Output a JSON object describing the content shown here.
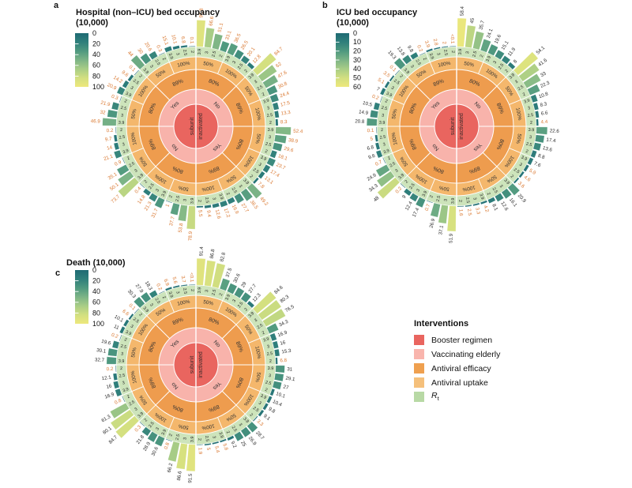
{
  "figure_title": "",
  "colors": {
    "booster_center": "#e9655f",
    "elderly_ring": "#f8b3ab",
    "efficacy_ring": "#ee9c4e",
    "uptake_ring": "#f4b76c",
    "rt_ring": "#cde4bb",
    "orange_label": "#d9772f",
    "black_label": "#2b2b2b",
    "colormap_stops": [
      "#1e6a73",
      "#2f7f7b",
      "#4f997f",
      "#7cb486",
      "#a8cd86",
      "#d2df80",
      "#eee87c"
    ],
    "legend_swatches": [
      "#e9655f",
      "#f9b5ad",
      "#efa04f",
      "#f5c07b",
      "#b8d9a5"
    ]
  },
  "chart_data": {
    "type": "radial-bar",
    "rings": {
      "booster_regimen": [
        "subunit",
        "inactivated"
      ],
      "vaccinating_elderly": [
        "No",
        "Yes",
        "No",
        "Yes"
      ],
      "antiviral_efficacy": [
        "80%",
        "89%",
        "80%",
        "89%",
        "80%",
        "89%",
        "80%",
        "89%"
      ],
      "antiviral_uptake": [
        "50%",
        "100%",
        "50%",
        "100%",
        "50%",
        "100%",
        "50%",
        "100%",
        "50%",
        "100%",
        "50%",
        "100%",
        "50%",
        "100%",
        "50%",
        "100%"
      ],
      "rt_per_group": [
        "3.9",
        "3",
        "2.5",
        "2"
      ]
    },
    "panels": [
      {
        "letter": "a",
        "title": "Hospital (non–ICU) bed occupancy",
        "subtitle": "(10,000)",
        "scale_max": 100,
        "colorbar_ticks": [
          "0",
          "20",
          "40",
          "60",
          "80",
          "100"
        ],
        "orange_below": 999,
        "groups": [
          [
            "90.8",
            "66.6",
            "51.1",
            "33.1"
          ],
          [
            "36.5",
            "26.5",
            "20.1",
            "12.8"
          ],
          [
            "84.7",
            "62",
            "47.6",
            "30.8"
          ],
          [
            "24.4",
            "17.5",
            "13.3",
            "8.3"
          ],
          [
            "52.4",
            "38.9",
            "29.6",
            "18.1"
          ],
          [
            "23.7",
            "17.4",
            "13.1",
            "7.8"
          ],
          [
            "49.2",
            "36.5",
            "27.7",
            "16.9"
          ],
          [
            "17.2",
            "12.6",
            "9.4",
            "5.5"
          ],
          [
            "78.9",
            "53.8",
            "37.7",
            "1"
          ],
          [
            "31.7",
            "21.3",
            "14.8",
            "0.4"
          ],
          [
            "73.7",
            "50.1",
            "35.1",
            "0.9"
          ],
          [
            "21.1",
            "14",
            "9.7",
            "0.2"
          ],
          [
            "46.9",
            "32",
            "21.9",
            "0.3"
          ],
          [
            "20.9",
            "14.2",
            "9.6",
            "0.1"
          ],
          [
            "44",
            "30",
            "20.6",
            "0.3"
          ],
          [
            "15.1",
            "10.1",
            "6.8",
            "0.1"
          ]
        ]
      },
      {
        "letter": "b",
        "title": "ICU bed occupancy",
        "subtitle": "(10,000)",
        "scale_max": 60,
        "colorbar_ticks": [
          "0",
          "10",
          "20",
          "30",
          "40",
          "50",
          "60"
        ],
        "orange_below": 6,
        "groups": [
          [
            "58.4",
            "45",
            "35.7",
            "24.1"
          ],
          [
            "19.6",
            "15.1",
            "11.9",
            "8"
          ],
          [
            "54.1",
            "41.6",
            "33",
            "22.3"
          ],
          [
            "10.8",
            "8.3",
            "6.6",
            "4.4"
          ],
          [
            "22.6",
            "17.4",
            "13.6",
            "8.8"
          ],
          [
            "7.6",
            "5.9",
            "4.6",
            "3.6"
          ],
          [
            "20.9",
            "16.1",
            "12.6",
            "8.1"
          ],
          [
            "4.2",
            "3.3",
            "2.5",
            "1.6"
          ],
          [
            "51.9",
            "37.1",
            "26.9",
            "0.7"
          ],
          [
            "17.4",
            "12.4",
            "9",
            "0.2"
          ],
          [
            "48",
            "34.3",
            "24.9",
            "0.7"
          ],
          [
            "9.6",
            "6.8",
            "5",
            "0.1"
          ],
          [
            "20.8",
            "14.9",
            "10.5",
            "0.2"
          ],
          [
            "7",
            "5.1",
            "3.5",
            "0.1"
          ],
          [
            "19.3",
            "13.8",
            "9.8",
            "0.2"
          ],
          [
            "3.9",
            "2.8",
            "2",
            "<0.1"
          ]
        ]
      },
      {
        "letter": "c",
        "title": "Death (10,000)",
        "subtitle": "",
        "scale_max": 100,
        "colorbar_ticks": [
          "0",
          "20",
          "40",
          "60",
          "80",
          "100"
        ],
        "orange_below": 7,
        "groups": [
          [
            "91.4",
            "86.8",
            "82.8",
            "37.5"
          ],
          [
            "30.6",
            "29",
            "27.7",
            "12.3"
          ],
          [
            "84.6",
            "80.3",
            "76.5",
            "34.3"
          ],
          [
            "16.9",
            "16",
            "15.3",
            "6.8"
          ],
          [
            "31",
            "29.1",
            "27",
            "10.1"
          ],
          [
            "10.4",
            "9.8",
            "9.1",
            "3.3"
          ],
          [
            "28.7",
            "26.9",
            "25",
            "9.2"
          ],
          [
            "5.8",
            "5.4",
            "5",
            "1.9"
          ],
          [
            "91.5",
            "86.6",
            "66.2",
            "0.8"
          ],
          [
            "30.6",
            "28.9",
            "21.8",
            "0.3"
          ],
          [
            "84.7",
            "80.1",
            "61.3",
            "0.8"
          ],
          [
            "16.9",
            "16",
            "12.1",
            "0.2"
          ],
          [
            "32.7",
            "30.1",
            "19.6",
            "0.2"
          ],
          [
            "11",
            "10.1",
            "6.6",
            "0.1"
          ],
          [
            "30.3",
            "27.9",
            "18.3",
            "0.2"
          ],
          [
            "6.9",
            "5.6",
            "3.7",
            "<0.1"
          ]
        ]
      }
    ]
  },
  "interventions_legend": {
    "title": "Interventions",
    "items": [
      {
        "label": "Booster regimen",
        "color": "#e9655f"
      },
      {
        "label": "Vaccinating elderly",
        "color": "#f9b5ad"
      },
      {
        "label": "Antiviral efficacy",
        "color": "#efa04f"
      },
      {
        "label": "Antiviral uptake",
        "color": "#f5c07b"
      },
      {
        "label": "R",
        "subscript": "t",
        "italic": true,
        "color": "#b8d9a5"
      }
    ]
  }
}
